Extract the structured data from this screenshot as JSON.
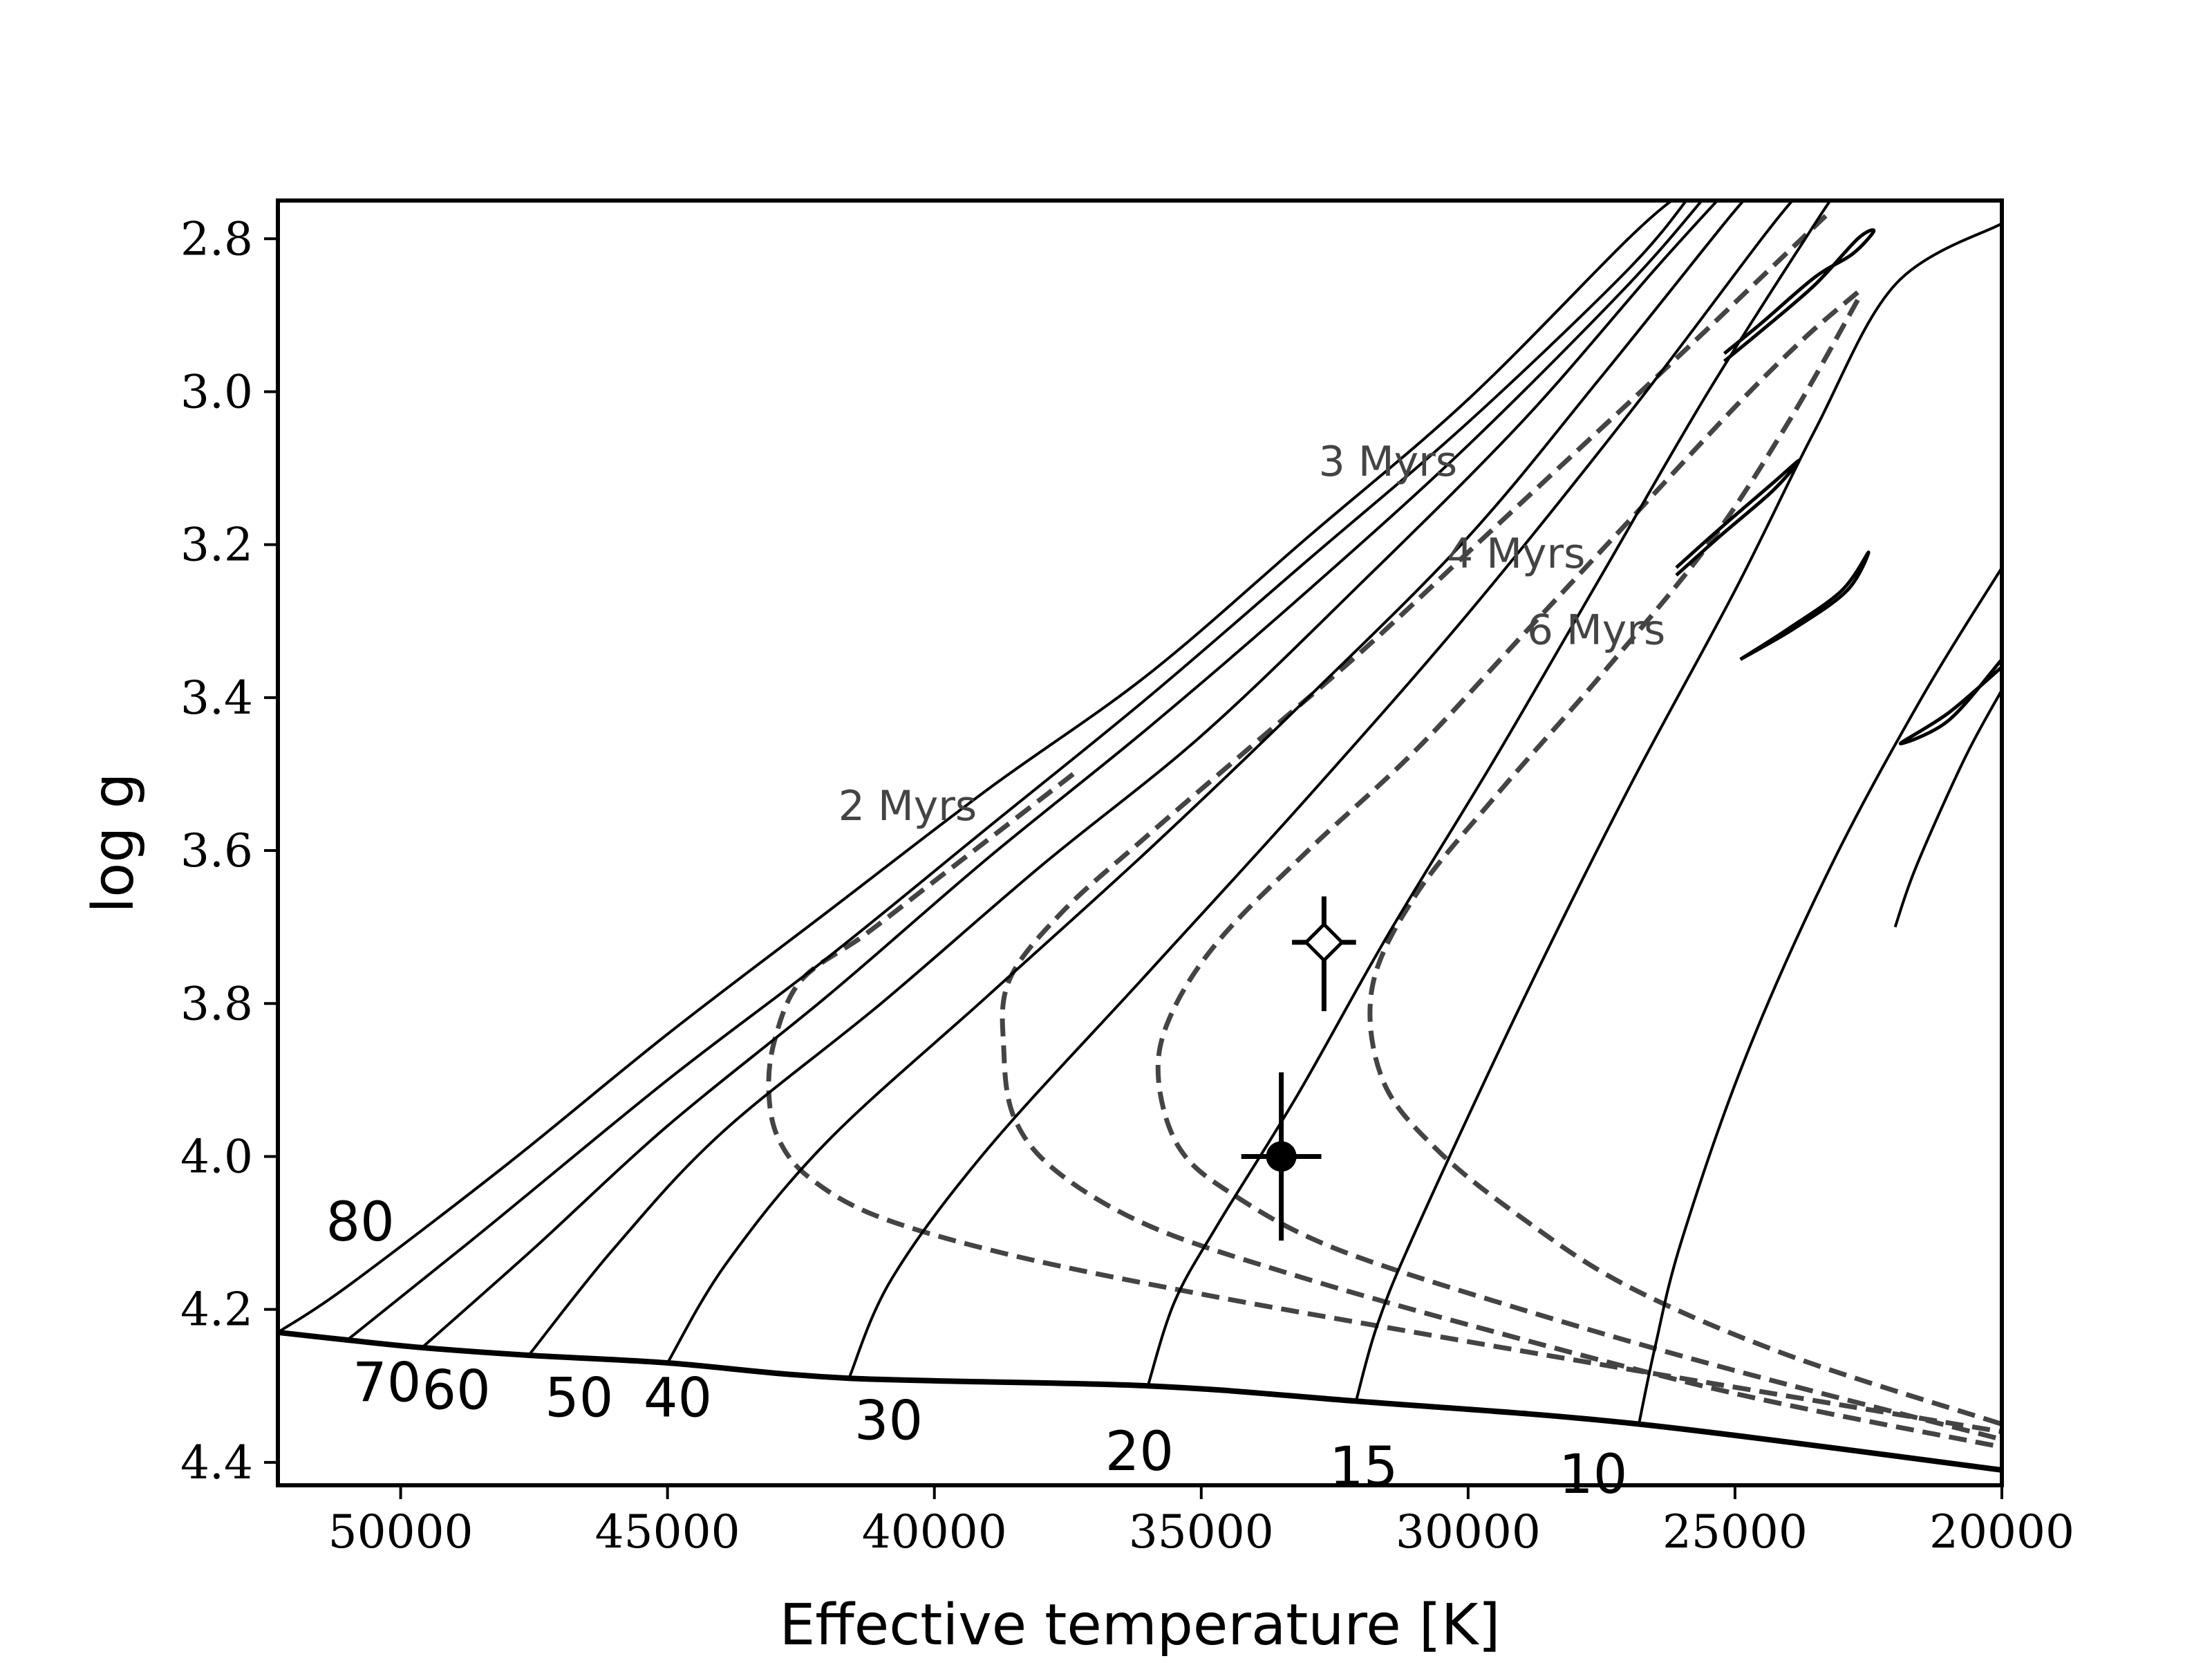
{
  "chart_data": {
    "type": "line",
    "title": "",
    "xlabel": "Effective temperature [K]",
    "ylabel": "log g",
    "xlim": [
      52300,
      20000
    ],
    "ylim": [
      4.43,
      2.75
    ],
    "x_inverted": true,
    "y_inverted": true,
    "grid": false,
    "legend": "none",
    "x_ticks": [
      {
        "value": 50000,
        "label": "50000"
      },
      {
        "value": 45000,
        "label": "45000"
      },
      {
        "value": 40000,
        "label": "40000"
      },
      {
        "value": 35000,
        "label": "35000"
      },
      {
        "value": 30000,
        "label": "30000"
      },
      {
        "value": 25000,
        "label": "25000"
      },
      {
        "value": 20000,
        "label": "20000"
      }
    ],
    "y_ticks": [
      {
        "value": 2.8,
        "label": "2.8"
      },
      {
        "value": 3.0,
        "label": "3.0"
      },
      {
        "value": 3.2,
        "label": "3.2"
      },
      {
        "value": 3.4,
        "label": "3.4"
      },
      {
        "value": 3.6,
        "label": "3.6"
      },
      {
        "value": 3.8,
        "label": "3.8"
      },
      {
        "value": 4.0,
        "label": "4.0"
      },
      {
        "value": 4.2,
        "label": "4.2"
      },
      {
        "value": 4.4,
        "label": "4.4"
      }
    ],
    "zams": [
      [
        52300,
        4.23
      ],
      [
        51000,
        4.24
      ],
      [
        49600,
        4.25
      ],
      [
        47600,
        4.26
      ],
      [
        45000,
        4.27
      ],
      [
        41600,
        4.29
      ],
      [
        36000,
        4.3
      ],
      [
        32100,
        4.32
      ],
      [
        26800,
        4.35
      ],
      [
        20000,
        4.41
      ]
    ],
    "tracks": [
      {
        "mass_label": "80",
        "points": [
          [
            52300,
            4.23
          ],
          [
            51000,
            4.17
          ],
          [
            48000,
            4.01
          ],
          [
            45000,
            3.84
          ],
          [
            42000,
            3.68
          ],
          [
            39000,
            3.52
          ],
          [
            36000,
            3.37
          ],
          [
            33000,
            3.19
          ],
          [
            30000,
            3.01
          ],
          [
            27000,
            2.8
          ],
          [
            26000,
            2.74
          ]
        ]
      },
      {
        "mass_label": "70",
        "points": [
          [
            51000,
            4.24
          ],
          [
            48500,
            4.1
          ],
          [
            45000,
            3.9
          ],
          [
            42000,
            3.74
          ],
          [
            39000,
            3.57
          ],
          [
            36000,
            3.4
          ],
          [
            33000,
            3.22
          ],
          [
            30000,
            3.04
          ],
          [
            27000,
            2.84
          ],
          [
            25800,
            2.74
          ]
        ]
      },
      {
        "mass_label": "60",
        "points": [
          [
            49600,
            4.25
          ],
          [
            47500,
            4.12
          ],
          [
            45000,
            3.96
          ],
          [
            42000,
            3.79
          ],
          [
            39000,
            3.61
          ],
          [
            36000,
            3.44
          ],
          [
            33000,
            3.26
          ],
          [
            30000,
            3.07
          ],
          [
            27000,
            2.86
          ],
          [
            25500,
            2.74
          ]
        ]
      },
      {
        "mass_label": "50",
        "points": [
          [
            47600,
            4.26
          ],
          [
            46000,
            4.12
          ],
          [
            44000,
            3.97
          ],
          [
            41000,
            3.8
          ],
          [
            38000,
            3.62
          ],
          [
            35000,
            3.45
          ],
          [
            32000,
            3.25
          ],
          [
            29000,
            3.04
          ],
          [
            26500,
            2.84
          ],
          [
            25200,
            2.74
          ]
        ]
      },
      {
        "mass_label": "40",
        "points": [
          [
            45000,
            4.27
          ],
          [
            43900,
            4.14
          ],
          [
            42000,
            3.98
          ],
          [
            39000,
            3.79
          ],
          [
            36000,
            3.6
          ],
          [
            33000,
            3.4
          ],
          [
            30000,
            3.19
          ],
          [
            27500,
            2.98
          ],
          [
            25200,
            2.78
          ],
          [
            24700,
            2.74
          ]
        ]
      },
      {
        "mass_label": "30",
        "points": [
          [
            41600,
            4.29
          ],
          [
            40800,
            4.16
          ],
          [
            39000,
            3.99
          ],
          [
            36000,
            3.76
          ],
          [
            33000,
            3.53
          ],
          [
            30000,
            3.29
          ],
          [
            27000,
            3.03
          ],
          [
            24500,
            2.8
          ],
          [
            23800,
            2.74
          ]
        ]
      },
      {
        "mass_label": "20",
        "points": [
          [
            36000,
            4.3
          ],
          [
            35500,
            4.19
          ],
          [
            34700,
            4.09
          ],
          [
            33200,
            3.92
          ],
          [
            31500,
            3.71
          ],
          [
            29500,
            3.48
          ],
          [
            27500,
            3.24
          ],
          [
            25500,
            3.0
          ],
          [
            23500,
            2.78
          ],
          [
            23100,
            2.74
          ]
        ]
      },
      {
        "mass_label": "15",
        "points": [
          [
            32100,
            4.32
          ],
          [
            31700,
            4.22
          ],
          [
            31000,
            4.1
          ],
          [
            29000,
            3.8
          ],
          [
            27000,
            3.52
          ],
          [
            25000,
            3.26
          ],
          [
            23500,
            3.05
          ],
          [
            22000,
            2.86
          ],
          [
            20000,
            2.78
          ]
        ]
      },
      {
        "mass_label": "10",
        "points": [
          [
            26800,
            4.35
          ],
          [
            26500,
            4.25
          ],
          [
            26000,
            4.11
          ],
          [
            24800,
            3.87
          ],
          [
            23200,
            3.62
          ],
          [
            21500,
            3.4
          ],
          [
            20000,
            3.23
          ]
        ]
      },
      {
        "mass_label": "",
        "points": [
          [
            20000,
            3.39
          ],
          [
            20700,
            3.48
          ],
          [
            21600,
            3.62
          ],
          [
            22000,
            3.7
          ]
        ]
      }
    ],
    "loops": [
      [
        [
          25200,
          2.95
        ],
        [
          24500,
          2.91
        ],
        [
          23500,
          2.85
        ],
        [
          22800,
          2.82
        ],
        [
          22400,
          2.79
        ],
        [
          22700,
          2.8
        ],
        [
          23500,
          2.86
        ],
        [
          24500,
          2.92
        ],
        [
          25200,
          2.96
        ]
      ],
      [
        [
          26100,
          3.23
        ],
        [
          25300,
          3.18
        ],
        [
          24300,
          3.12
        ],
        [
          23800,
          3.09
        ],
        [
          24300,
          3.13
        ],
        [
          25300,
          3.19
        ],
        [
          26100,
          3.24
        ]
      ],
      [
        [
          24900,
          3.35
        ],
        [
          24000,
          3.31
        ],
        [
          23000,
          3.26
        ],
        [
          22500,
          3.21
        ],
        [
          22900,
          3.26
        ],
        [
          23900,
          3.31
        ],
        [
          24900,
          3.35
        ]
      ],
      [
        [
          20000,
          3.35
        ],
        [
          21000,
          3.43
        ],
        [
          21900,
          3.46
        ],
        [
          21000,
          3.42
        ],
        [
          20000,
          3.36
        ]
      ]
    ],
    "isochrones": [
      {
        "label": "2 Myrs",
        "label_at": [
          41800,
          3.56
        ],
        "points": [
          [
            37400,
            3.5
          ],
          [
            38700,
            3.57
          ],
          [
            40000,
            3.64
          ],
          [
            41300,
            3.71
          ],
          [
            42500,
            3.77
          ],
          [
            43000,
            3.85
          ],
          [
            43100,
            3.92
          ],
          [
            42900,
            3.98
          ],
          [
            42300,
            4.03
          ],
          [
            41000,
            4.08
          ],
          [
            38500,
            4.13
          ],
          [
            35000,
            4.18
          ],
          [
            31000,
            4.23
          ],
          [
            26000,
            4.29
          ],
          [
            20000,
            4.36
          ]
        ]
      },
      {
        "label": "3 Myrs",
        "label_at": [
          32800,
          3.11
        ],
        "points": [
          [
            23300,
            2.77
          ],
          [
            24500,
            2.85
          ],
          [
            26000,
            2.95
          ],
          [
            28000,
            3.08
          ],
          [
            30000,
            3.21
          ],
          [
            32000,
            3.34
          ],
          [
            34000,
            3.46
          ],
          [
            36000,
            3.58
          ],
          [
            37600,
            3.68
          ],
          [
            38600,
            3.77
          ],
          [
            38700,
            3.86
          ],
          [
            38500,
            3.95
          ],
          [
            37700,
            4.02
          ],
          [
            36000,
            4.09
          ],
          [
            33500,
            4.15
          ],
          [
            30000,
            4.22
          ],
          [
            25000,
            4.31
          ],
          [
            20000,
            4.38
          ]
        ]
      },
      {
        "label": "4 Myrs",
        "label_at": [
          30400,
          3.23
        ],
        "points": [
          [
            22700,
            2.87
          ],
          [
            23700,
            2.93
          ],
          [
            25000,
            3.02
          ],
          [
            27000,
            3.17
          ],
          [
            29000,
            3.32
          ],
          [
            31000,
            3.47
          ],
          [
            33000,
            3.6
          ],
          [
            34700,
            3.72
          ],
          [
            35600,
            3.82
          ],
          [
            35800,
            3.9
          ],
          [
            35400,
            3.99
          ],
          [
            34400,
            4.05
          ],
          [
            32500,
            4.12
          ],
          [
            29000,
            4.2
          ],
          [
            25000,
            4.28
          ],
          [
            20000,
            4.37
          ]
        ]
      },
      {
        "label": "6 Myrs",
        "label_at": [
          28900,
          3.33
        ],
        "points": [
          [
            22700,
            2.88
          ],
          [
            24000,
            3.04
          ],
          [
            25500,
            3.2
          ],
          [
            27500,
            3.37
          ],
          [
            29500,
            3.53
          ],
          [
            31000,
            3.66
          ],
          [
            31800,
            3.78
          ],
          [
            31600,
            3.9
          ],
          [
            30600,
            3.99
          ],
          [
            29000,
            4.08
          ],
          [
            27000,
            4.17
          ],
          [
            24000,
            4.26
          ],
          [
            20000,
            4.35
          ]
        ]
      }
    ],
    "mass_labels": [
      {
        "label": "80",
        "at": [
          51400,
          4.11
        ]
      },
      {
        "label": "70",
        "at": [
          50900,
          4.32
        ]
      },
      {
        "label": "60",
        "at": [
          49600,
          4.33
        ]
      },
      {
        "label": "50",
        "at": [
          47300,
          4.34
        ]
      },
      {
        "label": "40",
        "at": [
          45450,
          4.34
        ]
      },
      {
        "label": "30",
        "at": [
          41500,
          4.37
        ]
      },
      {
        "label": "20",
        "at": [
          36800,
          4.41
        ]
      },
      {
        "label": "15",
        "at": [
          32600,
          4.43
        ]
      },
      {
        "label": "10",
        "at": [
          28300,
          4.44
        ]
      }
    ],
    "observed": [
      {
        "marker": "open-diamond",
        "x": 32700,
        "y": 3.72,
        "xerr": 600,
        "yerr": [
          0.06,
          0.09
        ]
      },
      {
        "marker": "filled-circle",
        "x": 33500,
        "y": 4.0,
        "xerr": 750,
        "yerr": 0.11
      }
    ]
  }
}
